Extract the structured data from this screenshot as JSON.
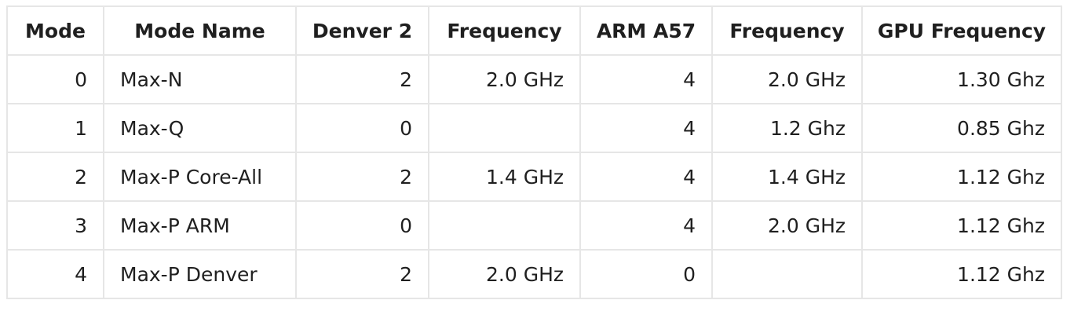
{
  "table": {
    "headers": [
      "Mode",
      "Mode Name",
      "Denver 2",
      "Frequency",
      "ARM A57",
      "Frequency",
      "GPU Frequency"
    ],
    "rows": [
      [
        "0",
        "Max-N",
        "2",
        "2.0 GHz",
        "4",
        "2.0 GHz",
        "1.30 Ghz"
      ],
      [
        "1",
        "Max-Q",
        "0",
        "",
        "4",
        "1.2 Ghz",
        "0.85 Ghz"
      ],
      [
        "2",
        "Max-P Core-All",
        "2",
        "1.4 GHz",
        "4",
        "1.4 GHz",
        "1.12 Ghz"
      ],
      [
        "3",
        "Max-P ARM",
        "0",
        "",
        "4",
        "2.0 GHz",
        "1.12 Ghz"
      ],
      [
        "4",
        "Max-P Denver",
        "2",
        "2.0 GHz",
        "0",
        "",
        "1.12 Ghz"
      ]
    ]
  }
}
